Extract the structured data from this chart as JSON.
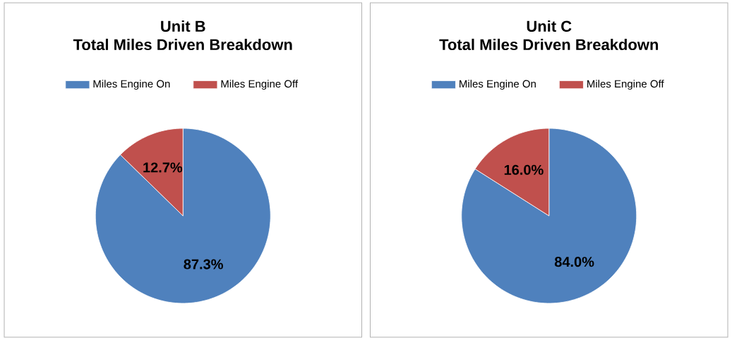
{
  "chart_data": [
    {
      "type": "pie",
      "title": "Unit B",
      "subtitle": "Total Miles Driven Breakdown",
      "categories": [
        "Miles Engine On",
        "Miles Engine Off"
      ],
      "values": [
        87.3,
        12.7
      ],
      "colors": [
        "#4f81bd",
        "#c0504d"
      ],
      "value_labels": [
        "87.3%",
        "12.7%"
      ],
      "legend": "top"
    },
    {
      "type": "pie",
      "title": "Unit C",
      "subtitle": "Total Miles Driven Breakdown",
      "categories": [
        "Miles Engine On",
        "Miles Engine Off"
      ],
      "values": [
        84.0,
        16.0
      ],
      "colors": [
        "#4f81bd",
        "#c0504d"
      ],
      "value_labels": [
        "84.0%",
        "16.0%"
      ],
      "legend": "top"
    }
  ]
}
